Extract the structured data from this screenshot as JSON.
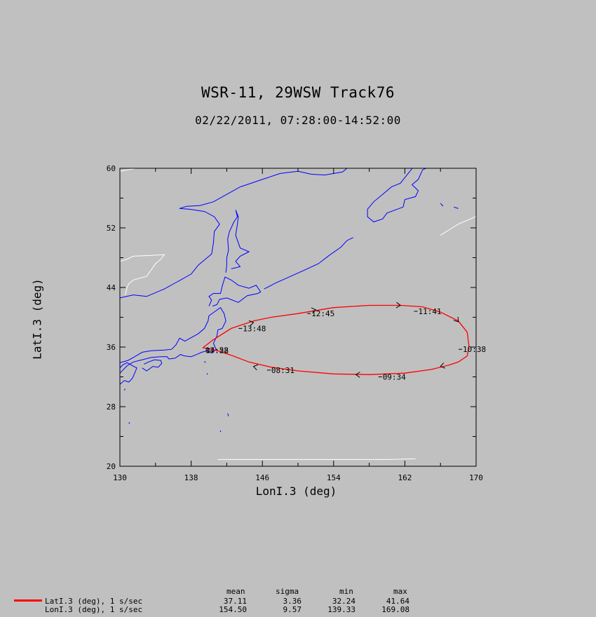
{
  "chart_data": {
    "type": "line",
    "title": "WSR-11, 29WSW Track76",
    "subtitle": "02/22/2011, 07:28:00-14:52:00",
    "xlabel": "LonI.3 (deg)",
    "ylabel": "LatI.3 (deg)",
    "xlim": [
      130,
      170
    ],
    "ylim": [
      20,
      60
    ],
    "x_ticks": [
      130,
      138,
      146,
      154,
      162,
      170
    ],
    "y_ticks": [
      20,
      28,
      36,
      44,
      52,
      60
    ],
    "colors": {
      "track": "#ff0000",
      "coastline": "#0000ff",
      "border": "#ffffff",
      "background": "#c0c0c0"
    },
    "series": [
      {
        "name": "LatI.3 (deg), 1 s/sec",
        "x": [
          139.3,
          140.5,
          142.5,
          145.0,
          147.0,
          150.0,
          154.0,
          158.0,
          161.5,
          164.0,
          166.0,
          168.0,
          169.0,
          169.2,
          169.0,
          168.0,
          167.0,
          165.0,
          162.0,
          158.0,
          154.0,
          150.0,
          147.0,
          144.5,
          142.5,
          141.0,
          140.0,
          139.3
        ],
        "y": [
          35.9,
          37.0,
          38.5,
          39.5,
          40.0,
          40.5,
          41.3,
          41.6,
          41.6,
          41.4,
          40.7,
          39.5,
          38.0,
          36.2,
          34.8,
          34.0,
          33.6,
          33.0,
          32.5,
          32.3,
          32.4,
          32.8,
          33.3,
          34.0,
          34.9,
          35.5,
          35.8,
          35.9
        ]
      }
    ],
    "time_labels": [
      {
        "text": "07:28",
        "lon": 139.6,
        "lat": 35.6
      },
      {
        "text": "14:52",
        "lon": 139.6,
        "lat": 35.6
      },
      {
        "text": "08:31",
        "lon": 147.0,
        "lat": 32.9
      },
      {
        "text": "09:34",
        "lon": 159.5,
        "lat": 32.0
      },
      {
        "text": "10:38",
        "lon": 168.5,
        "lat": 35.7
      },
      {
        "text": "11:41",
        "lon": 163.5,
        "lat": 40.8
      },
      {
        "text": "12:45",
        "lon": 151.5,
        "lat": 40.5
      },
      {
        "text": "13:48",
        "lon": 143.8,
        "lat": 38.5
      }
    ],
    "direction_arrows": [
      {
        "lon": 145.0,
        "lat": 33.4
      },
      {
        "lon": 156.5,
        "lat": 32.3
      },
      {
        "lon": 166.0,
        "lat": 33.4
      },
      {
        "lon": 168.0,
        "lat": 39.4
      },
      {
        "lon": 161.5,
        "lat": 41.6
      },
      {
        "lon": 152.0,
        "lat": 41.0
      },
      {
        "lon": 145.0,
        "lat": 39.3
      }
    ],
    "map_shapes": {
      "coastlines": [
        [
          [
            130.0,
            32.5
          ],
          [
            130.8,
            33.5
          ],
          [
            131.5,
            34.0
          ],
          [
            132.5,
            34.3
          ],
          [
            133.5,
            34.6
          ],
          [
            134.5,
            34.7
          ],
          [
            135.3,
            34.7
          ],
          [
            135.5,
            34.4
          ],
          [
            136.2,
            34.5
          ],
          [
            136.8,
            35.0
          ],
          [
            137.3,
            34.8
          ],
          [
            138.0,
            34.7
          ],
          [
            138.8,
            35.1
          ],
          [
            139.2,
            35.3
          ],
          [
            139.8,
            35.5
          ],
          [
            140.3,
            35.2
          ],
          [
            140.8,
            35.7
          ],
          [
            140.5,
            36.5
          ],
          [
            140.9,
            37.5
          ],
          [
            141.0,
            38.3
          ],
          [
            141.5,
            38.5
          ],
          [
            141.9,
            39.5
          ],
          [
            141.7,
            40.5
          ],
          [
            141.3,
            41.3
          ],
          [
            140.7,
            40.8
          ],
          [
            140.0,
            40.2
          ],
          [
            139.9,
            39.5
          ],
          [
            139.5,
            38.5
          ],
          [
            138.8,
            37.8
          ],
          [
            137.3,
            36.8
          ],
          [
            136.7,
            37.2
          ],
          [
            136.3,
            36.3
          ],
          [
            135.8,
            35.7
          ],
          [
            135.0,
            35.6
          ],
          [
            133.5,
            35.5
          ],
          [
            132.5,
            35.3
          ],
          [
            131.5,
            34.6
          ],
          [
            130.9,
            34.2
          ],
          [
            130.0,
            33.9
          ]
        ],
        [
          [
            130.0,
            31.0
          ],
          [
            130.5,
            31.5
          ],
          [
            131.0,
            31.3
          ],
          [
            131.4,
            31.8
          ],
          [
            131.7,
            32.6
          ],
          [
            131.9,
            33.2
          ],
          [
            131.4,
            33.5
          ],
          [
            130.8,
            33.9
          ],
          [
            130.3,
            33.6
          ],
          [
            130.0,
            33.2
          ]
        ],
        [
          [
            132.5,
            33.2
          ],
          [
            133.0,
            32.8
          ],
          [
            133.7,
            33.4
          ],
          [
            134.3,
            33.3
          ],
          [
            134.7,
            33.8
          ],
          [
            134.6,
            34.2
          ],
          [
            133.9,
            34.3
          ],
          [
            133.2,
            34.0
          ],
          [
            132.7,
            33.7
          ]
        ],
        [
          [
            140.0,
            41.5
          ],
          [
            140.3,
            42.3
          ],
          [
            140.0,
            42.8
          ],
          [
            140.5,
            43.2
          ],
          [
            141.3,
            43.2
          ],
          [
            141.5,
            44.2
          ],
          [
            141.8,
            45.4
          ],
          [
            142.5,
            45.0
          ],
          [
            143.3,
            44.3
          ],
          [
            144.5,
            43.9
          ],
          [
            145.3,
            44.3
          ],
          [
            145.8,
            43.4
          ],
          [
            145.5,
            43.2
          ],
          [
            144.3,
            42.9
          ],
          [
            143.3,
            42.0
          ],
          [
            142.0,
            42.6
          ],
          [
            141.2,
            42.4
          ],
          [
            140.9,
            41.7
          ],
          [
            140.4,
            41.5
          ]
        ],
        [
          [
            141.9,
            46.0
          ],
          [
            142.0,
            47.0
          ],
          [
            142.0,
            48.0
          ],
          [
            142.2,
            49.0
          ],
          [
            142.1,
            50.5
          ],
          [
            142.3,
            51.5
          ],
          [
            142.8,
            52.8
          ],
          [
            143.2,
            53.5
          ],
          [
            143.0,
            54.4
          ],
          [
            143.3,
            53.5
          ],
          [
            143.2,
            52.5
          ],
          [
            143.0,
            51.0
          ],
          [
            143.5,
            49.3
          ],
          [
            144.5,
            48.8
          ],
          [
            143.5,
            48.2
          ],
          [
            143.0,
            47.5
          ],
          [
            143.5,
            46.8
          ],
          [
            142.5,
            46.5
          ]
        ],
        [
          [
            130.0,
            42.6
          ],
          [
            131.5,
            43.0
          ],
          [
            133.0,
            42.8
          ],
          [
            135.0,
            43.8
          ],
          [
            136.5,
            44.8
          ],
          [
            138.0,
            45.8
          ],
          [
            138.8,
            47.0
          ],
          [
            140.3,
            48.5
          ],
          [
            140.5,
            50.0
          ],
          [
            140.6,
            51.5
          ],
          [
            141.2,
            52.5
          ],
          [
            140.6,
            53.5
          ],
          [
            139.5,
            54.2
          ],
          [
            137.8,
            54.5
          ],
          [
            136.7,
            54.6
          ],
          [
            137.5,
            54.9
          ],
          [
            139.0,
            55.0
          ],
          [
            140.5,
            55.5
          ],
          [
            142.0,
            56.5
          ],
          [
            143.5,
            57.5
          ],
          [
            146.0,
            58.5
          ],
          [
            148.0,
            59.3
          ],
          [
            150.0,
            59.6
          ],
          [
            151.5,
            59.2
          ],
          [
            153.0,
            59.1
          ],
          [
            155.0,
            59.5
          ],
          [
            156.5,
            61.0
          ]
        ],
        [
          [
            163.5,
            61.0
          ],
          [
            162.5,
            59.5
          ],
          [
            161.5,
            58.0
          ],
          [
            160.5,
            57.5
          ],
          [
            159.5,
            56.5
          ],
          [
            158.5,
            55.5
          ],
          [
            157.8,
            54.5
          ],
          [
            157.8,
            53.5
          ],
          [
            158.5,
            52.8
          ],
          [
            159.5,
            53.2
          ],
          [
            160.0,
            54.0
          ],
          [
            161.8,
            54.8
          ],
          [
            162.0,
            55.8
          ],
          [
            163.2,
            56.2
          ],
          [
            163.5,
            57.0
          ],
          [
            162.8,
            57.8
          ],
          [
            163.5,
            58.5
          ],
          [
            164.0,
            59.8
          ],
          [
            165.0,
            60.3
          ],
          [
            166.5,
            60.5
          ],
          [
            167.5,
            61.0
          ]
        ],
        [
          [
            156.2,
            50.7
          ],
          [
            155.5,
            50.3
          ],
          [
            154.8,
            49.4
          ],
          [
            153.5,
            48.3
          ],
          [
            152.3,
            47.2
          ],
          [
            150.5,
            46.2
          ],
          [
            148.8,
            45.3
          ],
          [
            147.5,
            44.6
          ],
          [
            146.2,
            43.8
          ]
        ],
        [
          [
            166.0,
            55.3
          ],
          [
            166.3,
            54.9
          ]
        ],
        [
          [
            167.5,
            54.8
          ],
          [
            168.0,
            54.6
          ]
        ],
        [
          [
            139.5,
            34.1
          ],
          [
            139.6,
            33.9
          ]
        ],
        [
          [
            139.8,
            32.5
          ],
          [
            139.8,
            32.3
          ]
        ],
        [
          [
            130.5,
            30.2
          ],
          [
            130.6,
            30.4
          ]
        ],
        [
          [
            131.0,
            25.7
          ],
          [
            131.1,
            25.9
          ]
        ],
        [
          [
            142.1,
            27.1
          ],
          [
            142.2,
            26.7
          ]
        ],
        [
          [
            141.3,
            24.8
          ],
          [
            141.3,
            24.6
          ]
        ]
      ],
      "borders": [
        [
          [
            130.0,
            47.5
          ],
          [
            130.8,
            47.8
          ],
          [
            131.5,
            48.2
          ],
          [
            133.5,
            48.3
          ],
          [
            135.0,
            48.4
          ],
          [
            134.5,
            47.7
          ],
          [
            134.0,
            47.2
          ],
          [
            133.0,
            45.5
          ],
          [
            131.5,
            45.0
          ],
          [
            131.0,
            44.5
          ],
          [
            130.8,
            44.0
          ],
          [
            130.6,
            43.0
          ]
        ],
        [
          [
            130.0,
            59.6
          ],
          [
            134.0,
            60.5
          ]
        ],
        [
          [
            166.0,
            51.0
          ],
          [
            168.0,
            52.5
          ],
          [
            170.5,
            53.8
          ]
        ],
        [
          [
            141.0,
            20.9
          ],
          [
            160.0,
            20.9
          ],
          [
            163.2,
            21.0
          ]
        ]
      ]
    },
    "stats_table": {
      "headers": [
        "mean",
        "sigma",
        "min",
        "max"
      ],
      "rows": [
        {
          "name": "LatI.3 (deg), 1 s/sec",
          "mean": "37.11",
          "sigma": "3.36",
          "min": "32.24",
          "max": "41.64"
        },
        {
          "name": "LonI.3 (deg), 1 s/sec",
          "mean": "154.50",
          "sigma": "9.57",
          "min": "139.33",
          "max": "169.08"
        }
      ]
    }
  }
}
